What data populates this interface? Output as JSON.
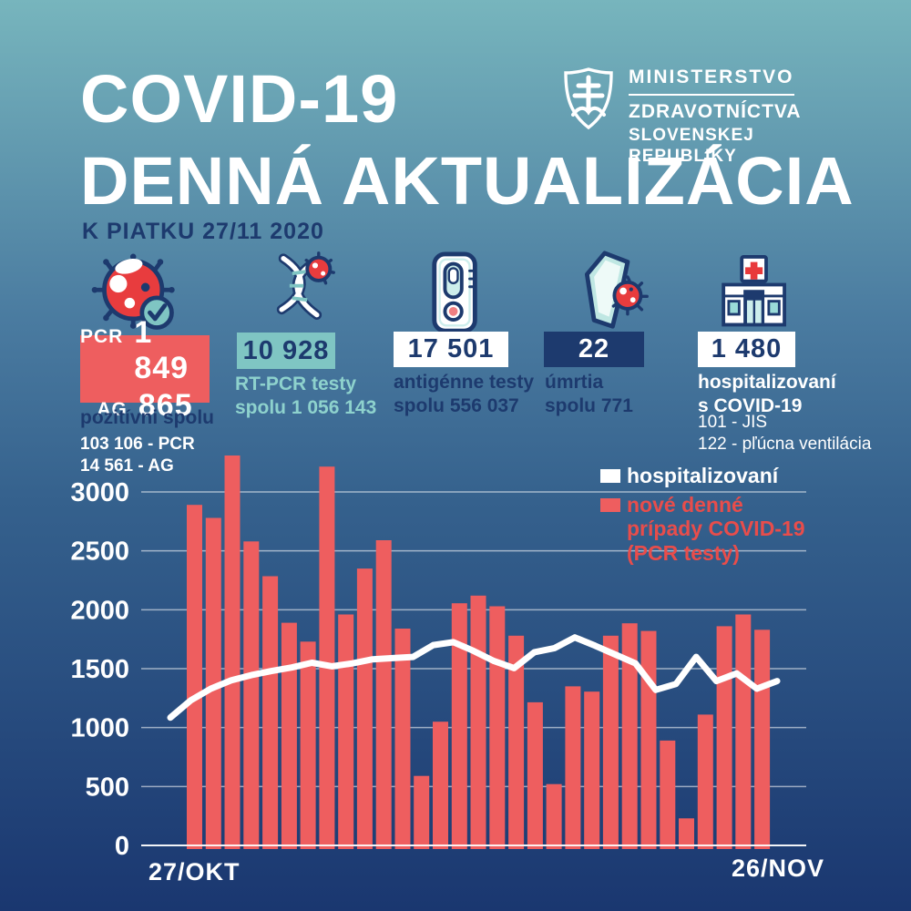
{
  "header": {
    "title_line1": "COVID-19",
    "title_line2": "DENNÁ AKTUALIZÁCIA",
    "subtitle": "K PIATKU 27/11 2020"
  },
  "ministry": {
    "line1": "MINISTERSTVO",
    "line2": "ZDRAVOTNÍCTVA",
    "line3": "SLOVENSKEJ REPUBLIKY"
  },
  "stats": [
    {
      "icon": "virus-check-icon",
      "badge_rows": [
        {
          "label": "PCR",
          "value": "1 849"
        },
        {
          "label": "AG",
          "value": "865"
        }
      ],
      "caption": "pozitívni spolu",
      "detail1": "103 106 - PCR",
      "detail2": "14 561 - AG"
    },
    {
      "icon": "dna-virus-icon",
      "badge_value": "10 928",
      "caption_line1": "RT-PCR testy",
      "caption_line2": "spolu 1 056 143"
    },
    {
      "icon": "antigen-test-icon",
      "badge_value": "17 501",
      "caption_line1": "antigénne testy",
      "caption_line2": "spolu 556 037"
    },
    {
      "icon": "coffin-virus-icon",
      "badge_value": "22",
      "caption_line1": "úmrtia",
      "caption_line2": "spolu 771"
    },
    {
      "icon": "hospital-icon",
      "badge_value": "1 480",
      "caption_line1": "hospitalizovaní",
      "caption_line2": "s COVID-19",
      "detail1": "101 - JIS",
      "detail2": "122 - pľúcna ventilácia"
    }
  ],
  "legend": {
    "item1_label": "hospitalizovaní",
    "item1_color": "#ffffff",
    "item2_line1": "nové denné",
    "item2_line2": "prípady COVID-19",
    "item2_line3": "(PCR testy)",
    "item2_color": "#ee5e5f",
    "item2_text_color": "#e84d4b"
  },
  "chart_data": {
    "type": "bar",
    "title": "",
    "xlabel": "",
    "ylabel": "",
    "ylim": [
      0,
      3000
    ],
    "yticks": [
      0,
      500,
      1000,
      1500,
      2000,
      2500,
      3000
    ],
    "grid": true,
    "legend_position": "top-right",
    "x_start_label": "27/OKT",
    "x_end_label": "26/NOV",
    "categories": [
      "27/10",
      "28/10",
      "29/10",
      "30/10",
      "31/10",
      "01/11",
      "02/11",
      "03/11",
      "04/11",
      "05/11",
      "06/11",
      "07/11",
      "08/11",
      "09/11",
      "10/11",
      "11/11",
      "12/11",
      "13/11",
      "14/11",
      "15/11",
      "16/11",
      "17/11",
      "18/11",
      "19/11",
      "20/11",
      "21/11",
      "22/11",
      "23/11",
      "24/11",
      "25/11",
      "26/11"
    ],
    "series": [
      {
        "name": "nové denné prípady COVID-19 (PCR testy)",
        "type": "bar",
        "color": "#ee5e5f",
        "values": [
          2890,
          2780,
          3345,
          2580,
          2285,
          1890,
          1730,
          3215,
          1960,
          2350,
          2590,
          1840,
          590,
          1050,
          2055,
          2120,
          2030,
          1780,
          1215,
          520,
          1350,
          1305,
          1780,
          1885,
          1820,
          890,
          230,
          1110,
          1860,
          1960,
          1830
        ]
      },
      {
        "name": "hospitalizovaní",
        "type": "line",
        "color": "#ffffff",
        "values": [
          1085,
          1230,
          1330,
          1400,
          1445,
          1480,
          1510,
          1550,
          1520,
          1545,
          1580,
          1590,
          1600,
          1700,
          1725,
          1650,
          1565,
          1505,
          1640,
          1675,
          1765,
          1695,
          1620,
          1545,
          1320,
          1370,
          1600,
          1395,
          1460,
          1330,
          1395
        ]
      }
    ]
  },
  "colors": {
    "bg_top": "#77b5bd",
    "bg_bottom": "#1a3770",
    "navy": "#1d3a6e",
    "red": "#ee5e5f",
    "icon_red": "#e83c3e",
    "teal": "#7fc5c3",
    "teal_text": "#8ed2cd",
    "white": "#ffffff"
  }
}
